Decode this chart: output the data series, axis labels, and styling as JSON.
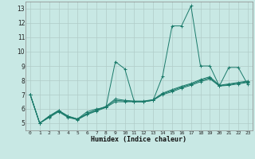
{
  "title": "",
  "xlabel": "Humidex (Indice chaleur)",
  "bg_color": "#c8e8e4",
  "grid_color": "#b0ccc8",
  "line_color": "#1a7a6a",
  "xlim": [
    -0.5,
    23.5
  ],
  "ylim": [
    4.5,
    13.5
  ],
  "xticks": [
    0,
    1,
    2,
    3,
    4,
    5,
    6,
    7,
    8,
    9,
    10,
    11,
    12,
    13,
    14,
    15,
    16,
    17,
    18,
    19,
    20,
    21,
    22,
    23
  ],
  "yticks": [
    5,
    6,
    7,
    8,
    9,
    10,
    11,
    12,
    13
  ],
  "lines": [
    [
      7.0,
      5.0,
      5.5,
      5.9,
      5.5,
      5.3,
      5.8,
      6.0,
      6.1,
      9.3,
      8.8,
      6.5,
      6.5,
      6.6,
      8.3,
      11.8,
      11.8,
      13.2,
      9.0,
      9.0,
      7.6,
      8.9,
      8.9,
      7.7
    ],
    [
      7.0,
      5.0,
      5.4,
      5.8,
      5.4,
      5.25,
      5.6,
      5.85,
      6.1,
      6.5,
      6.5,
      6.5,
      6.5,
      6.6,
      7.0,
      7.2,
      7.45,
      7.65,
      7.9,
      8.1,
      7.6,
      7.65,
      7.75,
      7.85
    ],
    [
      7.0,
      5.0,
      5.45,
      5.85,
      5.45,
      5.27,
      5.65,
      5.9,
      6.15,
      6.6,
      6.55,
      6.52,
      6.52,
      6.63,
      7.05,
      7.28,
      7.52,
      7.72,
      7.98,
      8.18,
      7.62,
      7.7,
      7.8,
      7.9
    ],
    [
      7.0,
      5.0,
      5.48,
      5.88,
      5.48,
      5.29,
      5.68,
      5.93,
      6.18,
      6.7,
      6.6,
      6.55,
      6.55,
      6.65,
      7.1,
      7.35,
      7.58,
      7.78,
      8.05,
      8.25,
      7.65,
      7.75,
      7.85,
      7.95
    ]
  ]
}
